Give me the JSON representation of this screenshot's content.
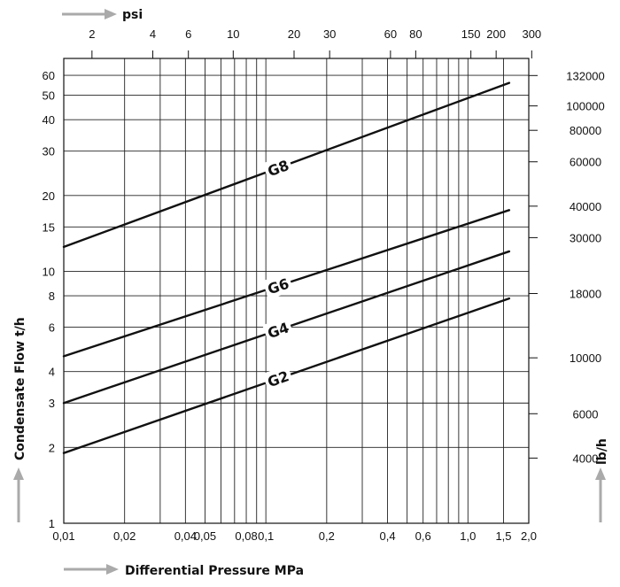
{
  "chart_data": {
    "type": "line",
    "xscale": "log",
    "yscale": "log",
    "xlabel": "Differential Pressure MPa",
    "ylabel": "Condensate Flow t/h",
    "x2label": "psi",
    "y2label": "lb/h",
    "xlim": [
      0.01,
      2.0
    ],
    "ylim": [
      1,
      70
    ],
    "grid": true,
    "x_tick_labels": [
      "0,01",
      "0,02",
      "0,04",
      "0,05",
      "0,08",
      "0,1",
      "0,2",
      "0,4",
      "0,6",
      "1,0",
      "1,5",
      "2,0"
    ],
    "y_tick_labels": [
      "1",
      "2",
      "3",
      "4",
      "6",
      "8",
      "10",
      "15",
      "20",
      "30",
      "40",
      "50",
      "60"
    ],
    "psi_tick_labels": [
      "2",
      "4",
      "6",
      "10",
      "20",
      "30",
      "60",
      "80",
      "150",
      "200",
      "300"
    ],
    "lbh_tick_labels": [
      "132000",
      "100000",
      "80000",
      "60000",
      "40000",
      "30000",
      "18000",
      "10000",
      "6000",
      "4000"
    ],
    "series": [
      {
        "name": "G8",
        "x": [
          0.01,
          1.6
        ],
        "y": [
          12.5,
          56
        ]
      },
      {
        "name": "G6",
        "x": [
          0.01,
          1.6
        ],
        "y": [
          4.6,
          17.5
        ]
      },
      {
        "name": "G4",
        "x": [
          0.01,
          1.6
        ],
        "y": [
          3.0,
          12
        ]
      },
      {
        "name": "G2",
        "x": [
          0.01,
          1.6
        ],
        "y": [
          1.9,
          7.8
        ]
      }
    ]
  }
}
